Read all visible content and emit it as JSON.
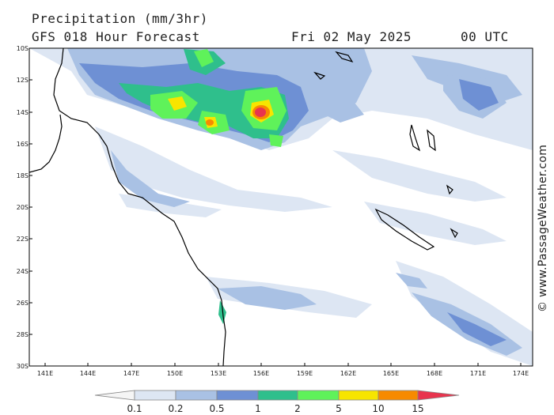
{
  "header": {
    "title": "Precipitation (mm/3hr)",
    "subtitle": "GFS 018 Hour Forecast",
    "date": "Fri 02 May 2025",
    "time": "00 UTC"
  },
  "credit": "© www.PassageWeather.com",
  "axes": {
    "lat_labels": [
      "10S",
      "12S",
      "14S",
      "16S",
      "18S",
      "20S",
      "22S",
      "24S",
      "26S",
      "28S",
      "30S"
    ],
    "lon_labels": [
      "141E",
      "144E",
      "147E",
      "150E",
      "153E",
      "156E",
      "159E",
      "162E",
      "165E",
      "168E",
      "171E",
      "174E"
    ]
  },
  "legend": {
    "labels": [
      "0.1",
      "0.2",
      "0.5",
      "1",
      "2",
      "5",
      "10",
      "15"
    ],
    "colors": [
      "#f5f5f5",
      "#dde6f3",
      "#a9c1e4",
      "#6e90d4",
      "#2fbf8c",
      "#5ff25a",
      "#f7e500",
      "#f78a00",
      "#e8344e"
    ]
  },
  "precip_colors": {
    "light": "#dde6f3",
    "mid": "#a9c1e4",
    "blue": "#6e90d4",
    "teal": "#2fbf8c",
    "green": "#5ff25a",
    "yellow": "#f7e500",
    "orange": "#f78a00",
    "red": "#e8344e"
  }
}
